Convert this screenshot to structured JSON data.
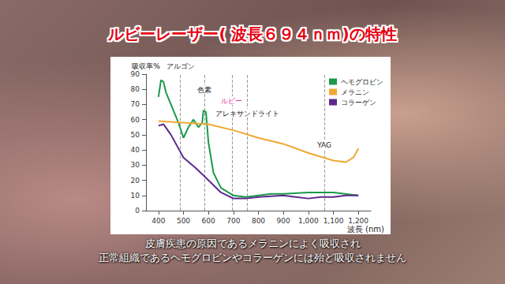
{
  "chart_data": {
    "type": "line",
    "title": "ルビーレーザー( 波長６９４ｎｍ)の特性",
    "caption": [
      "皮膚疾患の原因であるメラニンによく吸収され",
      "正常組織であるヘモグロビンやコラーゲンには殆ど吸収されません"
    ],
    "x_label": "波長 (nm)",
    "y_label": "吸収率%",
    "xlim": [
      350,
      1250
    ],
    "xticks": [
      400,
      500,
      600,
      700,
      800,
      900,
      1000,
      1100,
      1200
    ],
    "ylim": [
      0,
      90
    ],
    "yticks": [
      0,
      10,
      20,
      30,
      40,
      50,
      60,
      70,
      80,
      90
    ],
    "grid": false,
    "legend": "upper right",
    "series": [
      {
        "name": "ヘモグロビン",
        "color": "#1a9a4a",
        "x": [
          400,
          410,
          420,
          430,
          450,
          480,
          500,
          520,
          540,
          560,
          575,
          580,
          590,
          600,
          620,
          650,
          700,
          750,
          800,
          850,
          900,
          1000,
          1100,
          1200
        ],
        "values": [
          75,
          86,
          85,
          78,
          70,
          58,
          48,
          55,
          60,
          55,
          58,
          66,
          65,
          45,
          25,
          15,
          10,
          9,
          10,
          11,
          11,
          12,
          12,
          10
        ]
      },
      {
        "name": "メラニン",
        "color": "#f0a830",
        "x": [
          400,
          500,
          600,
          700,
          800,
          900,
          1000,
          1100,
          1150,
          1180,
          1200
        ],
        "values": [
          59,
          58,
          57,
          53,
          48,
          44,
          38,
          33,
          32,
          35,
          41
        ]
      },
      {
        "name": "コラーゲン",
        "color": "#5b2a8c",
        "x": [
          400,
          420,
          450,
          500,
          550,
          600,
          650,
          700,
          750,
          800,
          900,
          950,
          1000,
          1050,
          1100,
          1150,
          1200
        ],
        "values": [
          56,
          57,
          50,
          35,
          28,
          20,
          12,
          8,
          8,
          9,
          10,
          9,
          8,
          9,
          9,
          10,
          10
        ]
      }
    ],
    "annotations": [
      {
        "label": "アルゴン",
        "x": 488,
        "color": "#222222"
      },
      {
        "label": "色素",
        "x": 585,
        "color": "#222222"
      },
      {
        "label": "ルビー",
        "x": 694,
        "color": "#e0309a"
      },
      {
        "label": "アレキサンドライト",
        "x": 755,
        "color": "#222222"
      },
      {
        "label": "YAG",
        "x": 1064,
        "color": "#222222"
      }
    ]
  }
}
